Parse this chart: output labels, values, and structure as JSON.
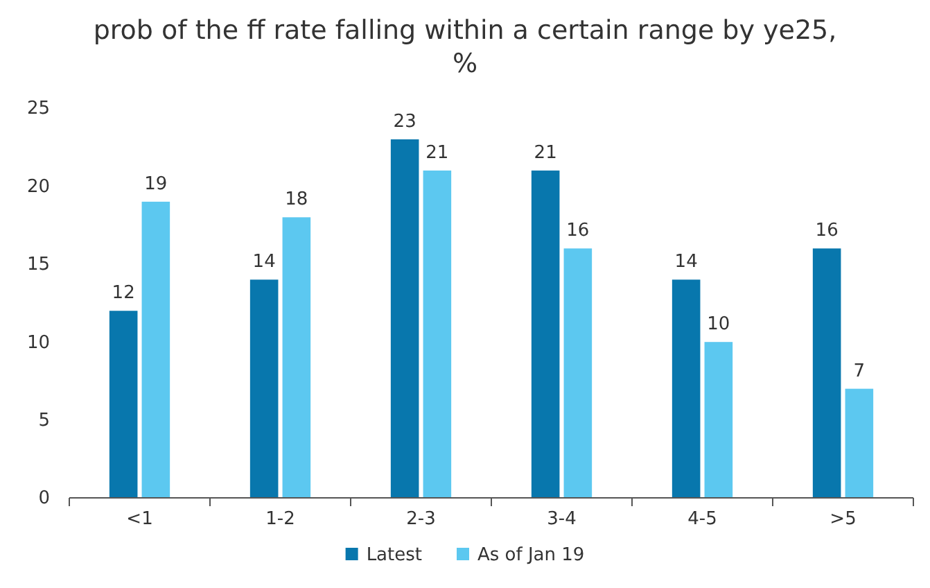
{
  "chart_data": {
    "type": "bar",
    "title": "prob of the ff rate falling within a certain range by ye25, %",
    "categories": [
      "<1",
      "1-2",
      "2-3",
      "3-4",
      "4-5",
      ">5"
    ],
    "series": [
      {
        "name": "Latest",
        "color": "#0877ad",
        "values": [
          12,
          14,
          23,
          21,
          14,
          16
        ]
      },
      {
        "name": "As of Jan 19",
        "color": "#5cc8f0",
        "values": [
          19,
          18,
          21,
          16,
          10,
          7
        ]
      }
    ],
    "ylim": [
      0,
      25
    ],
    "yticks": [
      0,
      5,
      10,
      15,
      20,
      25
    ],
    "grid": false,
    "legend": "bottom",
    "data_labels": true
  }
}
